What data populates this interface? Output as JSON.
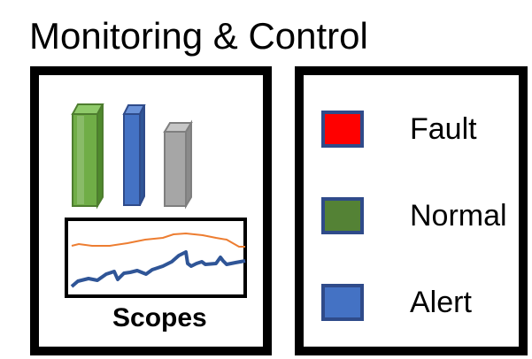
{
  "title": "Monitoring & Control",
  "scope_panel": {
    "bar_icon_colors": [
      "#70ad47",
      "#4472c4",
      "#a6a6a6"
    ],
    "scopes_label": "Scopes",
    "trace_colors": {
      "upper": "#ed7d31",
      "lower": "#2f5597"
    }
  },
  "legend": {
    "items": [
      {
        "label": "Fault",
        "color": "#ff0000"
      },
      {
        "label": "Normal",
        "color": "#548235"
      },
      {
        "label": "Alert",
        "color": "#4472c4"
      }
    ],
    "swatch_border_color": "#2f4b8a"
  }
}
